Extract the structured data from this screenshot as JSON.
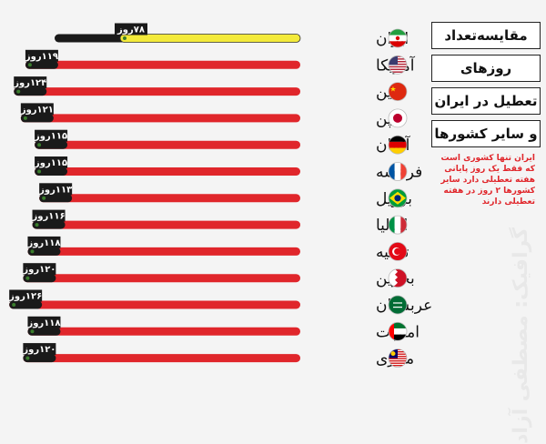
{
  "chart_data": {
    "type": "bar",
    "title_lines": [
      "مقایسه‌تعداد",
      "روزهای",
      "تعطیل در ایران",
      "و سایر کشورها"
    ],
    "note": "ایران تنها کشوری است که فقط یک روز پایانی هفته تعطیلی دارد سایر کشورها ۲ روز در هفته تعطیلی دارند",
    "watermark": "گرافیک: مصطفی آزاد",
    "value_unit": "روز",
    "xlim": [
      0,
      130
    ],
    "categories": [
      "ایران",
      "آمریکا",
      "چین",
      "ژاپن",
      "آلمان",
      "فرانسه",
      "برزیل",
      "ایتالیا",
      "ترکیه",
      "بحرین",
      "عربستان",
      "امارات",
      "مالزی"
    ],
    "values": [
      78,
      119,
      124,
      121,
      115,
      115,
      113,
      116,
      118,
      120,
      126,
      118,
      120
    ],
    "value_labels": [
      "۷۸روز",
      "۱۱۹روز",
      "۱۲۴روز",
      "۱۲۱روز",
      "۱۱۵روز",
      "۱۱۵روز",
      "۱۱۳روز",
      "۱۱۶روز",
      "۱۱۸روز",
      "۱۲۰روز",
      "۱۲۶روز",
      "۱۱۸روز",
      "۱۲۰روز"
    ],
    "flags": [
      "iran-flag",
      "usa-flag",
      "china-flag",
      "japan-flag",
      "germany-flag",
      "france-flag",
      "brazil-flag",
      "italy-flag",
      "turkey-flag",
      "bahrain-flag",
      "saudi-arabia-flag",
      "uae-flag",
      "malaysia-flag"
    ],
    "colors": {
      "highlight_bar": "#f3ea3a",
      "highlight_track": "#1a1a1a",
      "bar": "#e0262b",
      "bar_end": "#1a1a1a",
      "label_bg": "#1a1a1a",
      "label_text": "#ffffff"
    }
  }
}
